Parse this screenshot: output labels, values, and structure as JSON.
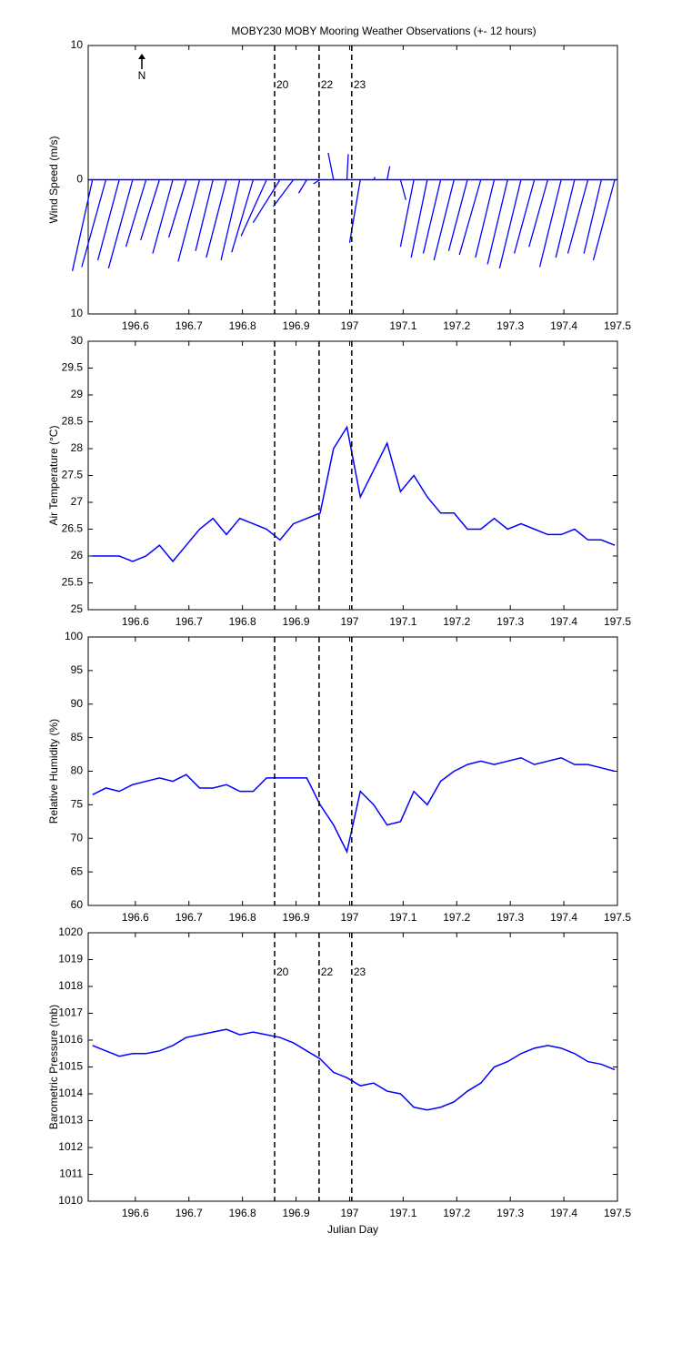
{
  "title": "MOBY230 MOBY Mooring Weather Observations (+- 12 hours)",
  "north_label": "N",
  "chart_data": [
    {
      "type": "stick",
      "ylabel": "Wind Speed (m/s)",
      "color": "#0000ff",
      "x": [
        196.52,
        196.545,
        196.57,
        196.595,
        196.62,
        196.645,
        196.67,
        196.695,
        196.72,
        196.745,
        196.77,
        196.795,
        196.82,
        196.845,
        196.87,
        196.895,
        196.92,
        196.945,
        196.97,
        196.995,
        197.02,
        197.045,
        197.07,
        197.095,
        197.12,
        197.145,
        197.17,
        197.195,
        197.22,
        197.245,
        197.27,
        197.295,
        197.32,
        197.345,
        197.37,
        197.395,
        197.42,
        197.445,
        197.47,
        197.495
      ],
      "u": [
        -1.5,
        -1.8,
        -1.6,
        -1.8,
        -1.5,
        -1.4,
        -1.5,
        -1.3,
        -1.6,
        -1.3,
        -1.5,
        -1.4,
        -1.6,
        -1.9,
        -2.0,
        -1.5,
        -0.6,
        -0.5,
        -0.4,
        0.1,
        -0.8,
        0.1,
        0.2,
        0.4,
        -1.0,
        -1.2,
        -1.3,
        -1.5,
        -1.4,
        -1.6,
        -1.4,
        -1.5,
        -1.6,
        -1.5,
        -1.4,
        -1.6,
        -1.4,
        -1.5,
        -1.3,
        -1.6
      ],
      "v": [
        -6.8,
        -6.5,
        -6.0,
        -6.6,
        -5.0,
        -4.5,
        -5.5,
        -4.3,
        -6.1,
        -5.3,
        -5.8,
        -6.0,
        -5.4,
        -4.2,
        -3.2,
        -2.0,
        -1.0,
        -0.3,
        2.0,
        1.9,
        -4.7,
        0.2,
        1.0,
        -1.5,
        -5.0,
        -5.8,
        -5.5,
        -6.0,
        -5.3,
        -5.6,
        -5.8,
        -6.3,
        -6.6,
        -5.5,
        -5.0,
        -6.5,
        -5.8,
        -5.5,
        -5.5,
        -6.0
      ],
      "xlim": [
        196.512,
        197.5
      ],
      "xticks": [
        196.6,
        196.7,
        196.8,
        196.9,
        197,
        197.1,
        197.2,
        197.3,
        197.4,
        197.5
      ],
      "ylim": [
        -10,
        10
      ],
      "yticks": [
        10,
        0,
        {
          "value": -10,
          "label": "10"
        }
      ],
      "vlines": [
        196.86,
        196.943,
        197.004
      ],
      "vline_labels": [
        "20",
        "22",
        "23"
      ]
    },
    {
      "type": "line",
      "ylabel": "Air Temperature (°C)",
      "color": "#0000ff",
      "x": [
        196.52,
        196.545,
        196.57,
        196.595,
        196.62,
        196.645,
        196.67,
        196.695,
        196.72,
        196.745,
        196.77,
        196.795,
        196.82,
        196.845,
        196.87,
        196.895,
        196.92,
        196.945,
        196.97,
        196.995,
        197.02,
        197.045,
        197.07,
        197.095,
        197.12,
        197.145,
        197.17,
        197.195,
        197.22,
        197.245,
        197.27,
        197.295,
        197.32,
        197.345,
        197.37,
        197.395,
        197.42,
        197.445,
        197.47,
        197.495
      ],
      "values": [
        26.0,
        26.0,
        26.0,
        25.9,
        26.0,
        26.2,
        25.9,
        26.2,
        26.5,
        26.7,
        26.4,
        26.7,
        26.6,
        26.5,
        26.3,
        26.6,
        26.7,
        26.8,
        28.0,
        28.4,
        27.1,
        27.6,
        28.1,
        27.2,
        27.5,
        27.1,
        26.8,
        26.8,
        26.5,
        26.5,
        26.7,
        26.5,
        26.6,
        26.5,
        26.4,
        26.4,
        26.5,
        26.3,
        26.3,
        26.2
      ],
      "xlim": [
        196.512,
        197.5
      ],
      "xticks": [
        196.6,
        196.7,
        196.8,
        196.9,
        197,
        197.1,
        197.2,
        197.3,
        197.4,
        197.5
      ],
      "ylim": [
        25,
        30
      ],
      "yticks": [
        25,
        25.5,
        26,
        26.5,
        27,
        27.5,
        28,
        28.5,
        29,
        29.5,
        30
      ],
      "vlines": [
        196.86,
        196.943,
        197.004
      ]
    },
    {
      "type": "line",
      "ylabel": "Relative Humidity (%)",
      "color": "#0000ff",
      "x": [
        196.52,
        196.545,
        196.57,
        196.595,
        196.62,
        196.645,
        196.67,
        196.695,
        196.72,
        196.745,
        196.77,
        196.795,
        196.82,
        196.845,
        196.87,
        196.895,
        196.92,
        196.945,
        196.97,
        196.995,
        197.02,
        197.045,
        197.07,
        197.095,
        197.12,
        197.145,
        197.17,
        197.195,
        197.22,
        197.245,
        197.27,
        197.295,
        197.32,
        197.345,
        197.37,
        197.395,
        197.42,
        197.445,
        197.47,
        197.495
      ],
      "values": [
        76.5,
        77.5,
        77,
        78,
        78.5,
        79,
        78.5,
        79.5,
        77.5,
        77.5,
        78,
        77,
        77,
        79,
        79,
        79,
        79,
        75,
        72,
        68,
        77,
        75,
        72,
        72.5,
        77,
        75,
        78.5,
        80,
        81,
        81.5,
        81,
        81.5,
        82,
        81,
        81.5,
        82,
        81,
        81,
        80.5,
        80
      ],
      "xlim": [
        196.512,
        197.5
      ],
      "xticks": [
        196.6,
        196.7,
        196.8,
        196.9,
        197,
        197.1,
        197.2,
        197.3,
        197.4,
        197.5
      ],
      "ylim": [
        60,
        100
      ],
      "yticks": [
        60,
        65,
        70,
        75,
        80,
        85,
        90,
        95,
        100
      ],
      "vlines": [
        196.86,
        196.943,
        197.004
      ]
    },
    {
      "type": "line",
      "ylabel": "Barometric Pressure (mb)",
      "xlabel": "Julian Day",
      "color": "#0000ff",
      "x": [
        196.52,
        196.545,
        196.57,
        196.595,
        196.62,
        196.645,
        196.67,
        196.695,
        196.72,
        196.745,
        196.77,
        196.795,
        196.82,
        196.845,
        196.87,
        196.895,
        196.92,
        196.945,
        196.97,
        196.995,
        197.02,
        197.045,
        197.07,
        197.095,
        197.12,
        197.145,
        197.17,
        197.195,
        197.22,
        197.245,
        197.27,
        197.295,
        197.32,
        197.345,
        197.37,
        197.395,
        197.42,
        197.445,
        197.47,
        197.495
      ],
      "values": [
        1015.8,
        1015.6,
        1015.4,
        1015.5,
        1015.5,
        1015.6,
        1015.8,
        1016.1,
        1016.2,
        1016.3,
        1016.4,
        1016.2,
        1016.3,
        1016.2,
        1016.1,
        1015.9,
        1015.6,
        1015.3,
        1014.8,
        1014.6,
        1014.3,
        1014.4,
        1014.1,
        1014.0,
        1013.5,
        1013.4,
        1013.5,
        1013.7,
        1014.1,
        1014.4,
        1015.0,
        1015.2,
        1015.5,
        1015.7,
        1015.8,
        1015.7,
        1015.5,
        1015.2,
        1015.1,
        1014.9
      ],
      "xlim": [
        196.512,
        197.5
      ],
      "xticks": [
        196.6,
        196.7,
        196.8,
        196.9,
        197,
        197.1,
        197.2,
        197.3,
        197.4,
        197.5
      ],
      "ylim": [
        1010,
        1020
      ],
      "yticks": [
        1010,
        1011,
        1012,
        1013,
        1014,
        1015,
        1016,
        1017,
        1018,
        1019,
        1020
      ],
      "vlines": [
        196.86,
        196.943,
        197.004
      ],
      "vline_labels": [
        "20",
        "22",
        "23"
      ]
    }
  ]
}
